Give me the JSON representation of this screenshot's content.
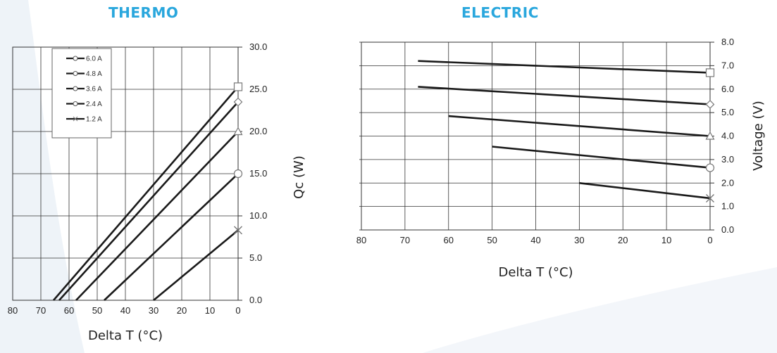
{
  "theme": {
    "title_color": "#2aa7dd",
    "line_color": "#1a1a1a",
    "grid_color": "#333333",
    "background_band": "#eef3f8"
  },
  "chart_data": [
    {
      "type": "line",
      "title": "THERMO",
      "xlabel": "Delta T (°C)",
      "ylabel": "Qc (W)",
      "xlim": [
        80,
        0
      ],
      "ylim": [
        0,
        30
      ],
      "x_ticks": [
        "80",
        "70",
        "60",
        "50",
        "40",
        "30",
        "20",
        "10",
        "0"
      ],
      "y_ticks": [
        "0.0",
        "5.0",
        "10.0",
        "15.0",
        "20.0",
        "25.0",
        "30.0"
      ],
      "grid": true,
      "legend_position": "top-left",
      "series": [
        {
          "name": "6.0 A",
          "marker": "square",
          "x": [
            65.5,
            0
          ],
          "y": [
            0,
            25.3
          ]
        },
        {
          "name": "4.8 A",
          "marker": "diamond",
          "x": [
            63.5,
            0
          ],
          "y": [
            0,
            23.5
          ]
        },
        {
          "name": "3.6 A",
          "marker": "triangle",
          "x": [
            57.5,
            0
          ],
          "y": [
            0,
            20.0
          ]
        },
        {
          "name": "2.4 A",
          "marker": "circle",
          "x": [
            47.5,
            0
          ],
          "y": [
            0,
            15.0
          ]
        },
        {
          "name": "1.2 A",
          "marker": "cross",
          "x": [
            30.0,
            0
          ],
          "y": [
            0,
            8.3
          ]
        }
      ]
    },
    {
      "type": "line",
      "title": "ELECTRIC",
      "xlabel": "Delta T (°C)",
      "ylabel": "Voltage (V)",
      "xlim": [
        80,
        0
      ],
      "ylim": [
        0,
        8
      ],
      "x_ticks": [
        "80",
        "70",
        "60",
        "50",
        "40",
        "30",
        "20",
        "10",
        "0"
      ],
      "y_ticks": [
        "0.0",
        "1.0",
        "2.0",
        "3.0",
        "4.0",
        "5.0",
        "6.0",
        "7.0",
        "8.0"
      ],
      "grid": true,
      "series": [
        {
          "marker": "square",
          "x": [
            67,
            0
          ],
          "y": [
            7.2,
            6.7
          ]
        },
        {
          "marker": "diamond",
          "x": [
            67,
            0
          ],
          "y": [
            6.1,
            5.35
          ]
        },
        {
          "marker": "triangle",
          "x": [
            60,
            0
          ],
          "y": [
            4.85,
            4.0
          ]
        },
        {
          "marker": "circle",
          "x": [
            50,
            0
          ],
          "y": [
            3.55,
            2.65
          ]
        },
        {
          "marker": "cross",
          "x": [
            30,
            0
          ],
          "y": [
            2.0,
            1.35
          ]
        }
      ]
    }
  ]
}
